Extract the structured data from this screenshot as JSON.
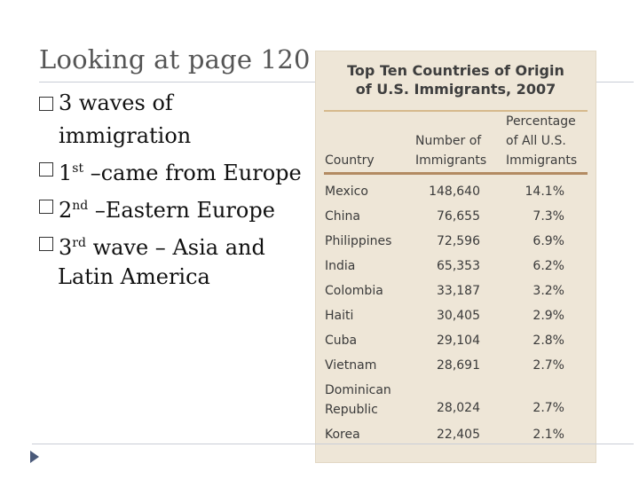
{
  "slide": {
    "title": "Looking at page 120",
    "bullets": [
      {
        "prefix": "",
        "text": "3 waves of immigration"
      },
      {
        "prefix": "1",
        "sup": "st",
        "text": " –came from Europe"
      },
      {
        "prefix": "2",
        "sup": "nd",
        "text": " –Eastern Europe"
      },
      {
        "prefix": "3",
        "sup": "rd",
        "text": " wave – Asia and",
        "continuation": "Latin America"
      }
    ]
  },
  "table": {
    "title": "Top Ten Countries of Origin\nof U.S. Immigrants, 2007",
    "headers": {
      "country": "Country",
      "number": "Number of\nImmigrants",
      "percentage": "Percentage\nof All U.S.\nImmigrants"
    },
    "rows": [
      {
        "country": "Mexico",
        "number": "148,640",
        "percentage": "14.1%"
      },
      {
        "country": "China",
        "number": "76,655",
        "percentage": "7.3%"
      },
      {
        "country": "Philippines",
        "number": "72,596",
        "percentage": "6.9%"
      },
      {
        "country": "India",
        "number": "65,353",
        "percentage": "6.2%"
      },
      {
        "country": "Colombia",
        "number": "33,187",
        "percentage": "3.2%"
      },
      {
        "country": "Haiti",
        "number": "30,405",
        "percentage": "2.9%"
      },
      {
        "country": "Cuba",
        "number": "29,104",
        "percentage": "2.8%"
      },
      {
        "country": "Vietnam",
        "number": "28,691",
        "percentage": "2.7%"
      },
      {
        "country": "Dominican\n  Republic",
        "number": "28,024",
        "percentage": "2.7%"
      },
      {
        "country": "Korea",
        "number": "22,405",
        "percentage": "2.1%"
      }
    ]
  },
  "colors": {
    "panel_bg": "#eee6d7",
    "rule_accent": "#b38b62",
    "title_text": "#555555"
  }
}
